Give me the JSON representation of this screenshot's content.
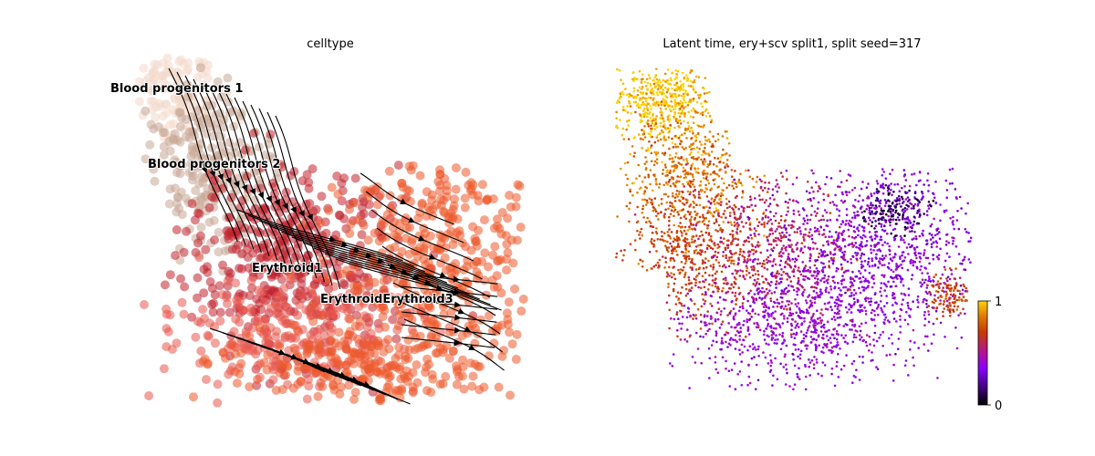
{
  "chart_data": [
    {
      "type": "scatter",
      "title": "celltype",
      "subtype": "velocity stream embedding",
      "grid": false,
      "legend": "on data",
      "colors": {
        "Blood progenitors 1": "#f3d9cb",
        "Blood progenitors 2": "#c9a796",
        "Erythroid1": "#c1232e",
        "Erythroid2": "#e8574f",
        "Erythroid3": "#ec5a2b",
        "stream": "#000000"
      },
      "cluster_labels": [
        {
          "text": "Blood progenitors 1",
          "x": -7.0,
          "y": 9.4
        },
        {
          "text": "Blood progenitors 2",
          "x": -5.6,
          "y": 6.5
        },
        {
          "text": "Erythroid1",
          "x": -3.2,
          "y": 2.5
        },
        {
          "text": "ErythroidErythroid3",
          "x": -1.1,
          "y": 1.3
        }
      ]
    },
    {
      "type": "scatter",
      "title": "Latent time, ery+scv split1, split seed=317",
      "grid": false,
      "colorbar": {
        "min": 0,
        "max": 1,
        "ticks": [
          "0",
          "1"
        ],
        "colormap": "gnuplot"
      }
    }
  ]
}
